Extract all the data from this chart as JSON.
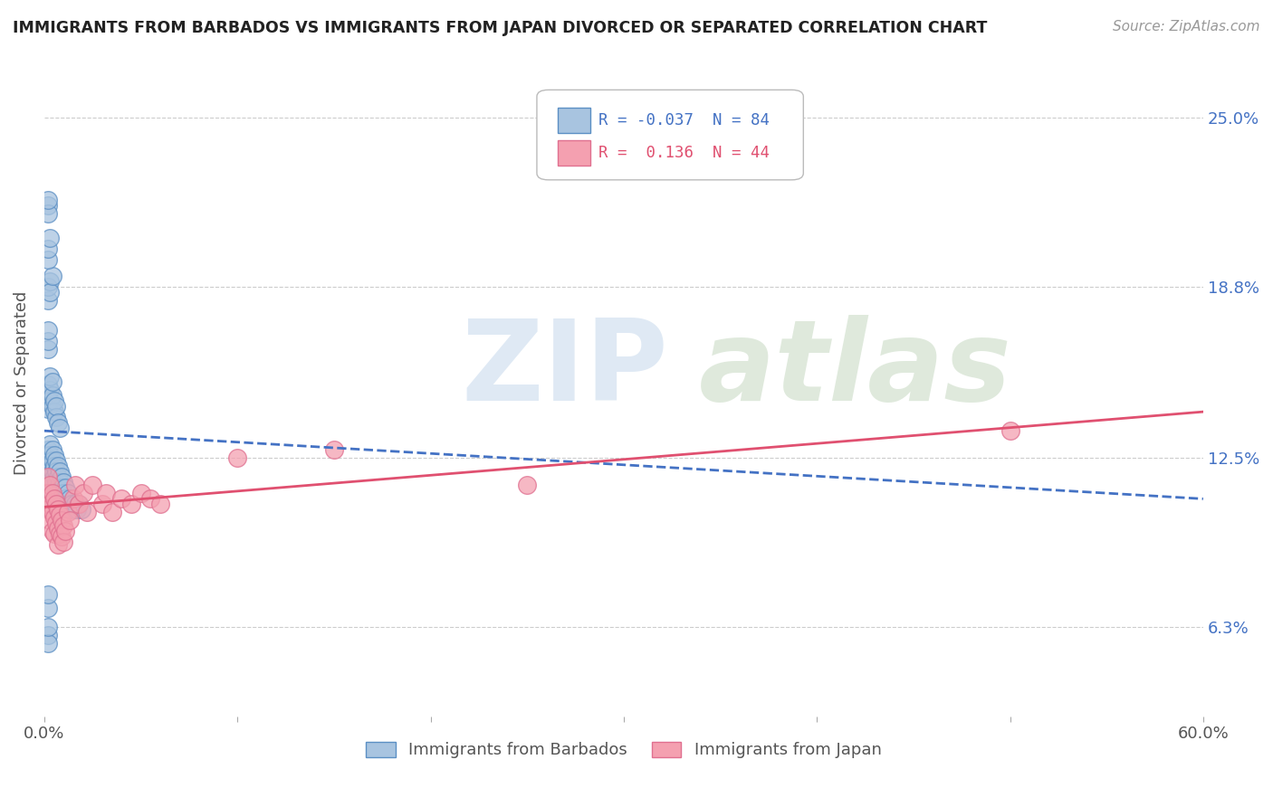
{
  "title": "IMMIGRANTS FROM BARBADOS VS IMMIGRANTS FROM JAPAN DIVORCED OR SEPARATED CORRELATION CHART",
  "source_text": "Source: ZipAtlas.com",
  "ylabel": "Divorced or Separated",
  "xlim": [
    0.0,
    0.6
  ],
  "ylim": [
    0.03,
    0.275
  ],
  "ytick_positions": [
    0.063,
    0.125,
    0.188,
    0.25
  ],
  "ytick_labels": [
    "6.3%",
    "12.5%",
    "18.8%",
    "25.0%"
  ],
  "barbados_color": "#a8c4e0",
  "japan_color": "#f4a0b0",
  "barbados_edge": "#5b8fc4",
  "japan_edge": "#e07090",
  "trend_barbados_color": "#4472c4",
  "trend_japan_color": "#e05070",
  "R_barbados": -0.037,
  "N_barbados": 84,
  "R_japan": 0.136,
  "N_japan": 44,
  "watermark_zip": "ZIP",
  "watermark_atlas": "atlas",
  "background_color": "#ffffff",
  "grid_color": "#cccccc",
  "trend_b_x0": 0.0,
  "trend_b_y0": 0.135,
  "trend_b_x1": 0.6,
  "trend_b_y1": 0.11,
  "trend_j_x0": 0.0,
  "trend_j_y0": 0.107,
  "trend_j_x1": 0.6,
  "trend_j_y1": 0.142,
  "barbados_data_x": [
    0.002,
    0.002,
    0.002,
    0.002,
    0.002,
    0.003,
    0.003,
    0.003,
    0.003,
    0.003,
    0.003,
    0.003,
    0.004,
    0.004,
    0.004,
    0.004,
    0.004,
    0.005,
    0.005,
    0.005,
    0.005,
    0.006,
    0.006,
    0.006,
    0.006,
    0.007,
    0.007,
    0.007,
    0.007,
    0.008,
    0.008,
    0.008,
    0.009,
    0.009,
    0.009,
    0.01,
    0.01,
    0.01,
    0.011,
    0.011,
    0.012,
    0.012,
    0.013,
    0.013,
    0.014,
    0.015,
    0.016,
    0.017,
    0.018,
    0.019,
    0.002,
    0.002,
    0.002,
    0.003,
    0.003,
    0.003,
    0.004,
    0.004,
    0.004,
    0.005,
    0.005,
    0.006,
    0.006,
    0.007,
    0.008,
    0.002,
    0.002,
    0.003,
    0.003,
    0.004,
    0.002,
    0.002,
    0.003,
    0.002,
    0.002,
    0.002,
    0.002,
    0.002,
    0.002,
    0.002,
    0.002,
    0.002,
    0.002,
    0.002
  ],
  "barbados_data_y": [
    0.128,
    0.125,
    0.122,
    0.118,
    0.115,
    0.13,
    0.126,
    0.122,
    0.118,
    0.114,
    0.11,
    0.107,
    0.128,
    0.124,
    0.12,
    0.116,
    0.112,
    0.126,
    0.122,
    0.118,
    0.114,
    0.124,
    0.12,
    0.116,
    0.112,
    0.122,
    0.118,
    0.114,
    0.11,
    0.12,
    0.116,
    0.112,
    0.118,
    0.114,
    0.11,
    0.116,
    0.112,
    0.108,
    0.114,
    0.11,
    0.112,
    0.108,
    0.11,
    0.106,
    0.108,
    0.106,
    0.108,
    0.106,
    0.108,
    0.106,
    0.148,
    0.143,
    0.152,
    0.146,
    0.15,
    0.155,
    0.144,
    0.148,
    0.153,
    0.142,
    0.146,
    0.14,
    0.144,
    0.138,
    0.136,
    0.183,
    0.188,
    0.19,
    0.186,
    0.192,
    0.198,
    0.202,
    0.206,
    0.06,
    0.057,
    0.063,
    0.218,
    0.215,
    0.22,
    0.165,
    0.168,
    0.172,
    0.07,
    0.075
  ],
  "japan_data_x": [
    0.002,
    0.002,
    0.002,
    0.003,
    0.003,
    0.003,
    0.004,
    0.004,
    0.004,
    0.005,
    0.005,
    0.005,
    0.006,
    0.006,
    0.007,
    0.007,
    0.007,
    0.008,
    0.008,
    0.009,
    0.009,
    0.01,
    0.01,
    0.011,
    0.012,
    0.013,
    0.015,
    0.016,
    0.018,
    0.02,
    0.022,
    0.025,
    0.03,
    0.032,
    0.035,
    0.04,
    0.045,
    0.05,
    0.055,
    0.06,
    0.1,
    0.15,
    0.25,
    0.5
  ],
  "japan_data_y": [
    0.118,
    0.112,
    0.106,
    0.115,
    0.108,
    0.102,
    0.112,
    0.105,
    0.098,
    0.11,
    0.103,
    0.097,
    0.108,
    0.101,
    0.106,
    0.099,
    0.093,
    0.104,
    0.097,
    0.102,
    0.096,
    0.1,
    0.094,
    0.098,
    0.105,
    0.102,
    0.11,
    0.115,
    0.108,
    0.112,
    0.105,
    0.115,
    0.108,
    0.112,
    0.105,
    0.11,
    0.108,
    0.112,
    0.11,
    0.108,
    0.125,
    0.128,
    0.115,
    0.135
  ]
}
